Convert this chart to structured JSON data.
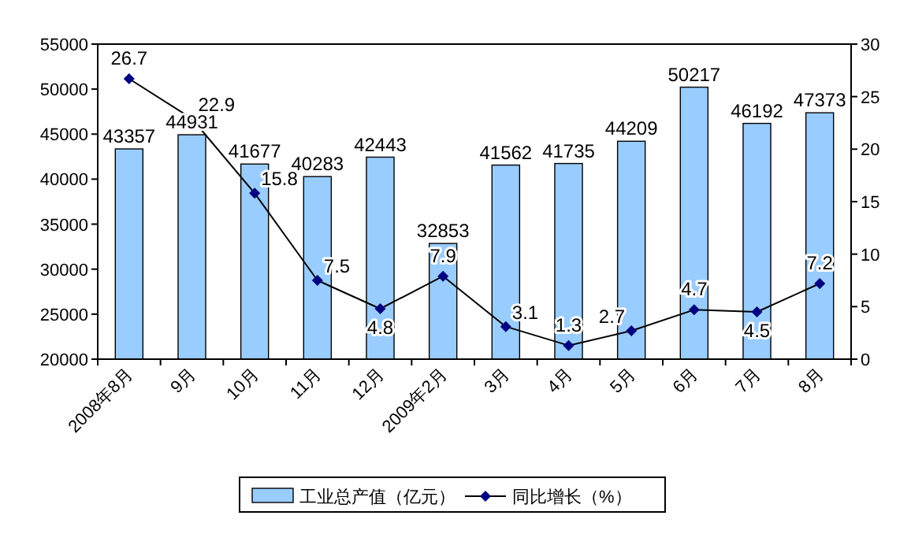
{
  "chart_data": {
    "type": "bar",
    "categories": [
      "2008年8月",
      "9月",
      "10月",
      "11月",
      "12月",
      "2009年2月",
      "3月",
      "4月",
      "5月",
      "6月",
      "7月",
      "8月"
    ],
    "series": [
      {
        "name": "工业总产值（亿元）",
        "color": "#99ccff",
        "values": [
          43357,
          44931,
          41677,
          40283,
          42443,
          32853,
          41562,
          41735,
          44209,
          50217,
          46192,
          47373
        ]
      },
      {
        "name": "同比增长（%）",
        "type": "line",
        "axis": "y2",
        "color": "#000080",
        "marker": "diamond",
        "values": [
          26.7,
          22.9,
          15.8,
          7.5,
          4.8,
          7.9,
          3.1,
          1.3,
          2.7,
          4.7,
          4.5,
          7.2
        ]
      }
    ],
    "ylim": [
      20000,
      55000
    ],
    "yticks": [
      20000,
      25000,
      30000,
      35000,
      40000,
      45000,
      50000,
      55000
    ],
    "y2lim": [
      0,
      30
    ],
    "y2ticks": [
      0,
      5,
      10,
      15,
      20,
      25,
      30
    ],
    "data_labels": true,
    "legend": "bottom",
    "grid": false
  }
}
